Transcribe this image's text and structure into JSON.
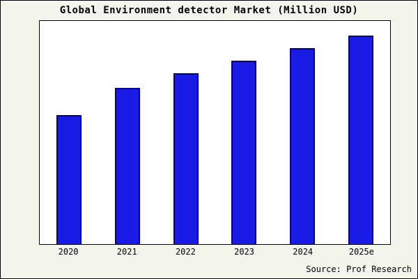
{
  "title": "Global Environment detector Market (Million USD)",
  "source": "Source: Prof Research",
  "colors": {
    "background": "#f4f3ec",
    "plot_background": "#ffffff",
    "bar_fill": "#1b1be6",
    "bar_border": "#00008b",
    "frame_border": "#000000"
  },
  "chart_data": {
    "type": "bar",
    "title": "Global Environment detector Market (Million USD)",
    "categories": [
      "2020",
      "2021",
      "2022",
      "2023",
      "2024",
      "2025e"
    ],
    "values": [
      62,
      75,
      82,
      88,
      94,
      100
    ],
    "xlabel": "",
    "ylabel": "",
    "ylim": [
      0,
      107
    ],
    "grid": false,
    "legend": false,
    "annotation": "Source: Prof Research"
  }
}
